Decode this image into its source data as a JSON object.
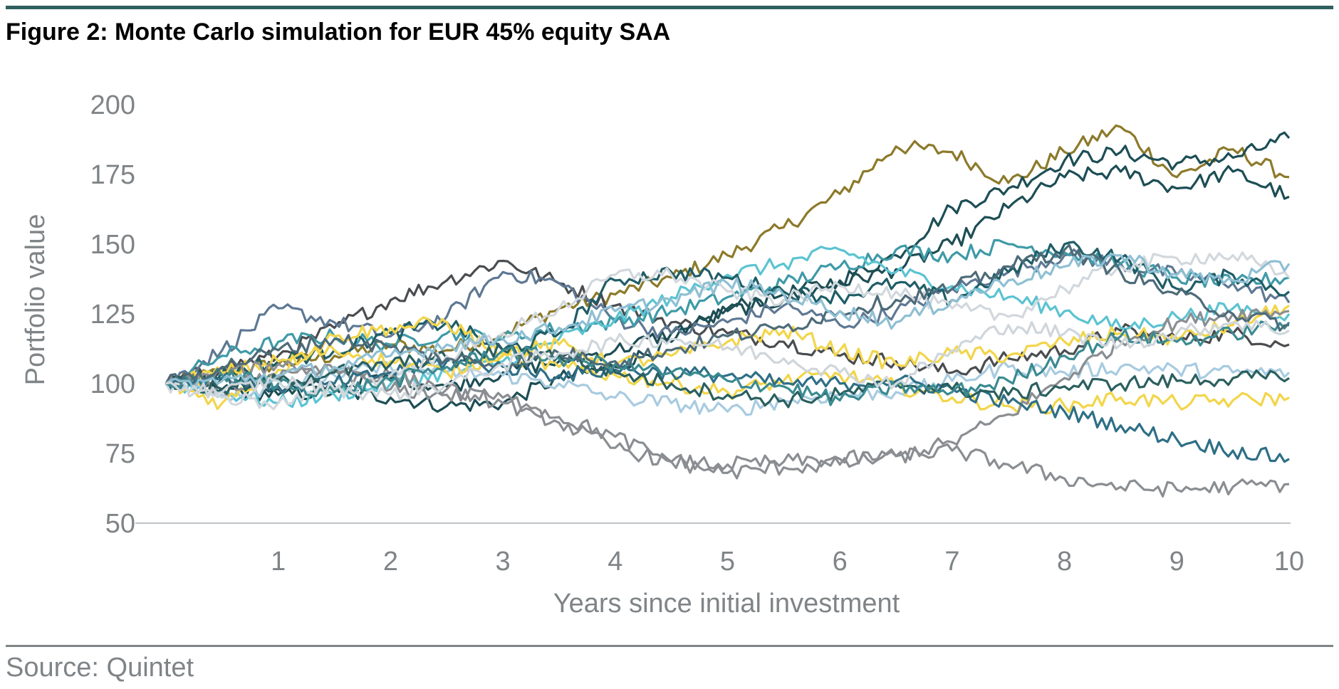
{
  "title": "Figure 2: Monte Carlo simulation for EUR 45% equity SAA",
  "source": "Source: Quintet",
  "chart_data": {
    "type": "line",
    "title": "Figure 2: Monte Carlo simulation for EUR 45% equity SAA",
    "xlabel": "Years since initial investment",
    "ylabel": "Portfolio value",
    "xlim": [
      0,
      10
    ],
    "ylim": [
      50,
      200
    ],
    "x_ticks": [
      1,
      2,
      3,
      4,
      5,
      6,
      7,
      8,
      9,
      10
    ],
    "y_ticks": [
      50,
      75,
      100,
      125,
      150,
      175,
      200
    ],
    "grid": false,
    "legend": "none",
    "x": [
      0,
      0.5,
      1,
      1.5,
      2,
      2.5,
      3,
      3.5,
      4,
      4.5,
      5,
      5.5,
      6,
      6.5,
      7,
      7.5,
      8,
      8.5,
      9,
      9.5,
      10
    ],
    "series": [
      {
        "color": "#8c7a2a",
        "values": [
          100,
          104,
          107,
          110,
          114,
          112,
          118,
          127,
          132,
          138,
          146,
          156,
          168,
          185,
          183,
          172,
          183,
          192,
          174,
          184,
          174
        ]
      },
      {
        "color": "#1d4e55",
        "values": [
          100,
          98,
          96,
          97,
          95,
          92,
          93,
          102,
          106,
          115,
          127,
          132,
          137,
          146,
          163,
          170,
          180,
          183,
          179,
          181,
          188
        ]
      },
      {
        "color": "#1d4e55",
        "values": [
          100,
          102,
          98,
          99,
          102,
          99,
          104,
          108,
          112,
          118,
          126,
          130,
          136,
          141,
          150,
          163,
          174,
          176,
          170,
          176,
          167
        ]
      },
      {
        "color": "#4a4d50",
        "values": [
          100,
          106,
          110,
          120,
          130,
          137,
          144,
          136,
          128,
          122,
          118,
          115,
          110,
          108,
          104,
          109,
          112,
          119,
          116,
          118,
          114
        ]
      },
      {
        "color": "#5e7893",
        "values": [
          100,
          112,
          127,
          122,
          117,
          124,
          140,
          136,
          123,
          118,
          122,
          128,
          121,
          126,
          134,
          140,
          146,
          143,
          139,
          136,
          129
        ]
      },
      {
        "color": "#3e9aa7",
        "values": [
          100,
          110,
          115,
          117,
          114,
          118,
          116,
          120,
          122,
          126,
          131,
          136,
          142,
          148,
          146,
          150,
          147,
          143,
          138,
          136,
          138
        ]
      },
      {
        "color": "#5bc3d1",
        "values": [
          100,
          97,
          93,
          96,
          100,
          104,
          108,
          116,
          123,
          131,
          139,
          143,
          148,
          140,
          135,
          131,
          126,
          120,
          124,
          127,
          125
        ]
      },
      {
        "color": "#1f5d66",
        "values": [
          100,
          104,
          108,
          112,
          118,
          122,
          112,
          118,
          137,
          140,
          138,
          133,
          131,
          136,
          130,
          140,
          150,
          145,
          134,
          139,
          133
        ]
      },
      {
        "color": "#a8cbe0",
        "values": [
          100,
          96,
          99,
          103,
          106,
          104,
          103,
          100,
          95,
          93,
          90,
          94,
          96,
          97,
          101,
          106,
          104,
          106,
          105,
          104,
          104
        ]
      },
      {
        "color": "#f2d54a",
        "values": [
          100,
          93,
          105,
          117,
          120,
          122,
          110,
          106,
          103,
          100,
          97,
          101,
          103,
          99,
          95,
          92,
          92,
          95,
          93,
          94,
          95
        ]
      },
      {
        "color": "#f2d54a",
        "values": [
          100,
          104,
          108,
          112,
          108,
          104,
          111,
          114,
          107,
          110,
          115,
          119,
          112,
          107,
          111,
          110,
          115,
          118,
          116,
          121,
          128
        ]
      },
      {
        "color": "#8a8e92",
        "values": [
          100,
          98,
          102,
          105,
          98,
          96,
          95,
          88,
          81,
          72,
          68,
          70,
          71,
          74,
          76,
          71,
          66,
          63,
          62,
          63,
          64
        ]
      },
      {
        "color": "#8a8e92",
        "values": [
          100,
          103,
          107,
          105,
          103,
          98,
          93,
          86,
          77,
          72,
          71,
          72,
          73,
          74,
          79,
          89,
          102,
          115,
          122,
          125,
          126
        ]
      },
      {
        "color": "#2e6f86",
        "values": [
          100,
          102,
          99,
          100,
          104,
          108,
          106,
          103,
          105,
          104,
          103,
          100,
          100,
          101,
          98,
          93,
          90,
          85,
          80,
          76,
          73
        ]
      },
      {
        "color": "#2a5f5f",
        "values": [
          100,
          98,
          101,
          104,
          107,
          109,
          112,
          110,
          104,
          100,
          96,
          94,
          96,
          100,
          98,
          96,
          99,
          100,
          101,
          102,
          102
        ]
      },
      {
        "color": "#d2d8dd",
        "values": [
          100,
          95,
          93,
          97,
          103,
          110,
          118,
          127,
          139,
          139,
          133,
          130,
          135,
          133,
          127,
          124,
          134,
          142,
          145,
          146,
          138
        ]
      },
      {
        "color": "#3a8a91",
        "values": [
          100,
          103,
          100,
          97,
          101,
          106,
          112,
          109,
          107,
          104,
          101,
          99,
          94,
          99,
          97,
          101,
          110,
          117,
          115,
          118,
          122
        ]
      },
      {
        "color": "#4d6b78",
        "values": [
          100,
          106,
          112,
          116,
          113,
          109,
          107,
          111,
          108,
          112,
          117,
          120,
          126,
          130,
          134,
          142,
          148,
          140,
          132,
          125,
          121
        ]
      },
      {
        "color": "#8fbfd3",
        "values": [
          100,
          101,
          103,
          106,
          110,
          114,
          116,
          120,
          126,
          130,
          136,
          132,
          126,
          122,
          130,
          137,
          142,
          146,
          139,
          137,
          143
        ]
      },
      {
        "color": "#cfd6db",
        "values": [
          100,
          97,
          101,
          98,
          96,
          100,
          107,
          111,
          115,
          116,
          113,
          109,
          104,
          100,
          112,
          121,
          118,
          114,
          118,
          122,
          119
        ]
      }
    ]
  }
}
